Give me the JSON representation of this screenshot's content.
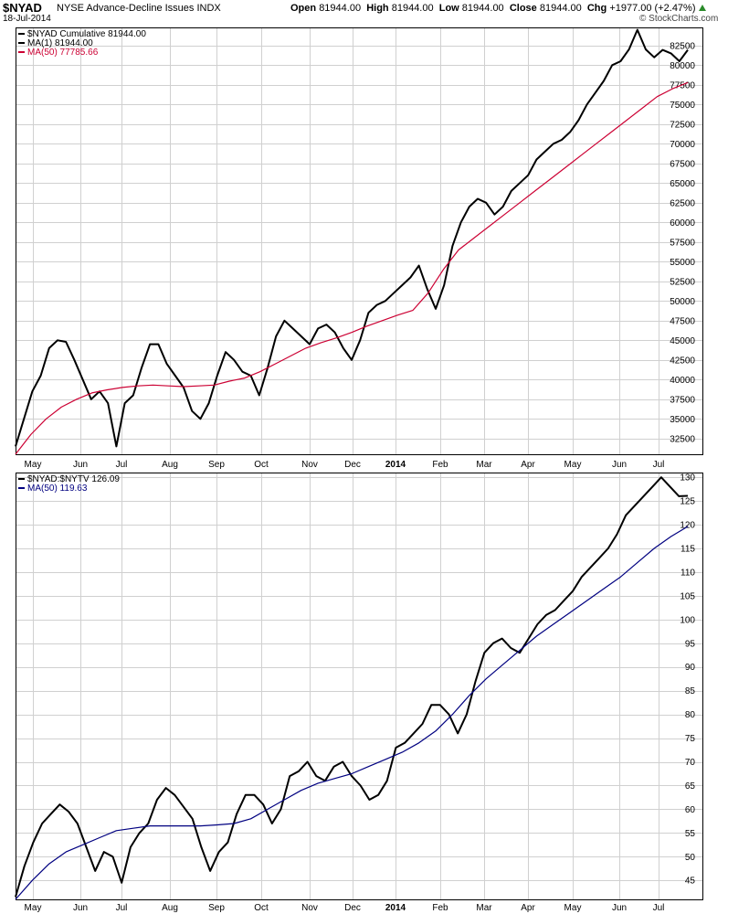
{
  "header": {
    "symbol": "$NYAD",
    "subtitle": "NYSE Advance-Decline Issues  INDX",
    "date": "18-Jul-2014",
    "open_label": "Open",
    "open": "81944.00",
    "high_label": "High",
    "high": "81944.00",
    "low_label": "Low",
    "low": "81944.00",
    "close_label": "Close",
    "close": "81944.00",
    "chg_label": "Chg",
    "chg": "+1977.00 (+2.47%)",
    "logo": "© StockCharts.com",
    "up_color": "#2a8a2a"
  },
  "chart_data": [
    {
      "type": "line",
      "legend": [
        {
          "text": "$NYAD Cumulative 81944.00",
          "color": "#000000"
        },
        {
          "text": "MA(1) 81944.00",
          "color": "#000000"
        },
        {
          "text": "MA(50) 77785.66",
          "color": "#cc0033"
        }
      ],
      "x_ticks": [
        "May",
        "Jun",
        "Jul",
        "Aug",
        "Sep",
        "Oct",
        "Nov",
        "Dec",
        "2014",
        "Feb",
        "Mar",
        "Apr",
        "May",
        "Jun",
        "Jul"
      ],
      "x_bold_tick": "2014",
      "y_ticks": [
        32500,
        35000,
        37500,
        40000,
        42500,
        45000,
        47500,
        50000,
        52500,
        55000,
        57500,
        60000,
        62500,
        65000,
        67500,
        70000,
        72500,
        75000,
        77500,
        80000,
        82500
      ],
      "ylim": [
        30500,
        84800
      ],
      "series": [
        {
          "name": "$NYAD",
          "color": "#000000",
          "x": [
            0,
            0.01,
            0.02,
            0.03,
            0.04,
            0.05,
            0.06,
            0.07,
            0.08,
            0.09,
            0.1,
            0.11,
            0.12,
            0.13,
            0.14,
            0.15,
            0.16,
            0.17,
            0.18,
            0.19,
            0.2,
            0.21,
            0.22,
            0.23,
            0.24,
            0.25,
            0.26,
            0.27,
            0.28,
            0.29,
            0.3,
            0.31,
            0.32,
            0.33,
            0.34,
            0.35,
            0.36,
            0.37,
            0.38,
            0.39,
            0.4,
            0.41,
            0.42,
            0.43,
            0.44,
            0.45,
            0.46,
            0.47,
            0.48,
            0.49,
            0.5,
            0.51,
            0.52,
            0.53,
            0.54,
            0.55,
            0.56,
            0.57,
            0.58,
            0.59,
            0.6,
            0.61,
            0.62,
            0.63,
            0.64,
            0.65,
            0.66,
            0.67,
            0.68,
            0.69,
            0.7,
            0.71,
            0.72,
            0.73,
            0.74,
            0.75,
            0.76,
            0.77,
            0.78,
            0.79,
            0.8,
            0.81,
            0.82,
            0.83,
            0.84,
            0.85,
            0.86,
            0.87,
            0.88,
            0.89,
            0.9,
            0.91,
            0.92,
            0.93,
            0.94,
            0.95,
            0.96,
            0.97,
            0.98,
            0.99,
            1
          ],
          "values": [
            31500,
            35000,
            38500,
            40500,
            44000,
            45000,
            44800,
            42500,
            40000,
            37500,
            38500,
            37000,
            31500,
            37000,
            38000,
            41500,
            44500,
            44500,
            42000,
            40500,
            39000,
            36000,
            35000,
            37000,
            40500,
            43500,
            42500,
            41000,
            40500,
            38000,
            41500,
            45500,
            47500,
            46500,
            45500,
            44500,
            46500,
            47000,
            46000,
            44000,
            42500,
            45000,
            48500,
            49500,
            50000,
            51000,
            52000,
            53000,
            54500,
            51500,
            49000,
            52000,
            57000,
            60000,
            62000,
            63000,
            62500,
            61000,
            62000,
            64000,
            65000,
            66000,
            68000,
            69000,
            70000,
            70500,
            71500,
            73000,
            75000,
            76500,
            78000,
            80000,
            80500,
            82000,
            84500,
            82000,
            81000,
            81944,
            81500,
            80500,
            81944,
            null,
            null,
            null,
            null,
            null,
            null,
            null,
            null,
            null,
            null,
            null,
            null,
            null,
            null,
            null,
            null,
            null,
            null,
            null,
            null
          ]
        },
        {
          "name": "MA(50)",
          "color": "#cc0033",
          "values": [
            30500,
            33000,
            35000,
            36500,
            37500,
            38300,
            38700,
            39000,
            39200,
            39300,
            39200,
            39100,
            39200,
            39300,
            39800,
            40200,
            41000,
            42000,
            43000,
            44000,
            44700,
            45300,
            46000,
            46800,
            47500,
            48200,
            48800,
            51000,
            54000,
            56500,
            58000,
            59500,
            61000,
            62500,
            64000,
            65500,
            67000,
            68500,
            70000,
            71500,
            73000,
            74500,
            76000,
            77000,
            77785
          ]
        }
      ]
    },
    {
      "type": "line",
      "legend": [
        {
          "text": "$NYAD:$NYTV 126.09",
          "color": "#000000"
        },
        {
          "text": "MA(50) 119.63",
          "color": "#000080"
        }
      ],
      "x_ticks": [
        "May",
        "Jun",
        "Jul",
        "Aug",
        "Sep",
        "Oct",
        "Nov",
        "Dec",
        "2014",
        "Feb",
        "Mar",
        "Apr",
        "May",
        "Jun",
        "Jul"
      ],
      "x_bold_tick": "2014",
      "y_ticks": [
        45,
        50,
        55,
        60,
        65,
        70,
        75,
        80,
        85,
        90,
        95,
        100,
        105,
        110,
        115,
        120,
        125,
        130
      ],
      "ylim": [
        41,
        131
      ],
      "series": [
        {
          "name": "$NYAD:$NYTV",
          "color": "#000000",
          "values": [
            41.5,
            48,
            53,
            57,
            59,
            61,
            59.5,
            57,
            52,
            47,
            51,
            50,
            44.5,
            52,
            55,
            57,
            62,
            64.5,
            63,
            60.5,
            58,
            52,
            47,
            51,
            53,
            59,
            63,
            63,
            61,
            57,
            60,
            67,
            68,
            70,
            67,
            66,
            69,
            70,
            67,
            65,
            62,
            63,
            66,
            73,
            74,
            76,
            78,
            82,
            82,
            80,
            76,
            80,
            87,
            93,
            95,
            96,
            94,
            93,
            96,
            99,
            101,
            102,
            104,
            106,
            109,
            111,
            113,
            115,
            118,
            122,
            124,
            126,
            128,
            130,
            128,
            126,
            126.09
          ]
        },
        {
          "name": "MA(50)",
          "color": "#000080",
          "values": [
            41,
            45,
            48.5,
            51,
            52.5,
            54,
            55.5,
            56,
            56.5,
            56.5,
            56.5,
            56.5,
            56.7,
            57,
            58,
            60,
            62,
            64,
            65.5,
            66.5,
            67.5,
            69,
            70.5,
            72,
            74,
            76.5,
            80,
            84,
            87.5,
            90.5,
            93.5,
            96.5,
            99,
            101.5,
            104,
            106.5,
            109,
            112,
            115,
            117.5,
            119.63
          ]
        }
      ]
    }
  ]
}
